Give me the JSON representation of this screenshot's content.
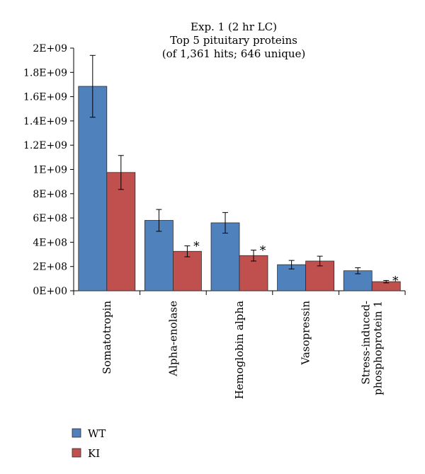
{
  "chart_data": {
    "type": "bar",
    "title": [
      "Exp. 1 (2 hr LC)",
      "Top 5 pituitary proteins",
      "(of 1,361 hits; 646 unique)"
    ],
    "xlabel": "",
    "ylabel": "",
    "ylim": [
      0,
      2000000000
    ],
    "yticks": [
      {
        "value": 0,
        "label": "0E+00"
      },
      {
        "value": 200000000,
        "label": "2E+08"
      },
      {
        "value": 400000000,
        "label": "4E+08"
      },
      {
        "value": 600000000,
        "label": "6E+08"
      },
      {
        "value": 800000000,
        "label": "8E+08"
      },
      {
        "value": 1000000000,
        "label": "1E+09"
      },
      {
        "value": 1200000000,
        "label": "1.2E+09"
      },
      {
        "value": 1400000000,
        "label": "1.4E+09"
      },
      {
        "value": 1600000000,
        "label": "1.6E+09"
      },
      {
        "value": 1800000000,
        "label": "1.8E+09"
      },
      {
        "value": 2000000000,
        "label": "2E+09"
      }
    ],
    "categories": [
      [
        "Somatotropin"
      ],
      [
        "Alpha-enolase"
      ],
      [
        "Hemoglobin alpha"
      ],
      [
        "Vasopressin"
      ],
      [
        "Stress-induced-",
        "phosphoprotein 1"
      ]
    ],
    "series": [
      {
        "name": "WT",
        "color": "#4F81BD",
        "values": [
          1685000000,
          580000000,
          560000000,
          215000000,
          165000000
        ],
        "errors": [
          255000000,
          90000000,
          85000000,
          35000000,
          25000000
        ]
      },
      {
        "name": "KI",
        "color": "#C0504D",
        "values": [
          975000000,
          325000000,
          290000000,
          245000000,
          75000000
        ],
        "errors": [
          140000000,
          45000000,
          45000000,
          40000000,
          10000000
        ],
        "significance": [
          "",
          "*",
          "*",
          "",
          "*"
        ]
      }
    ],
    "grid": false,
    "legend": "bottom-left"
  }
}
